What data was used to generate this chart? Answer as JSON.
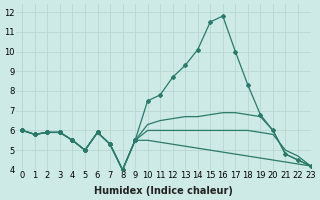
{
  "x": [
    0,
    1,
    2,
    3,
    4,
    5,
    6,
    7,
    8,
    9,
    10,
    11,
    12,
    13,
    14,
    15,
    16,
    17,
    18,
    19,
    20,
    21,
    22,
    23
  ],
  "line1": [
    6.0,
    5.8,
    5.9,
    5.9,
    5.5,
    5.0,
    5.9,
    5.3,
    4.0,
    5.5,
    7.5,
    7.8,
    8.7,
    9.3,
    10.1,
    11.5,
    11.8,
    10.0,
    8.3,
    6.8,
    6.0,
    4.8,
    4.5,
    4.2
  ],
  "line2": [
    6.0,
    5.8,
    5.9,
    5.9,
    5.5,
    5.0,
    5.9,
    5.3,
    4.0,
    5.5,
    5.5,
    5.4,
    5.3,
    5.2,
    5.1,
    5.0,
    4.9,
    4.8,
    4.7,
    4.6,
    4.5,
    4.4,
    4.3,
    4.2
  ],
  "line3": [
    6.0,
    5.8,
    5.9,
    5.9,
    5.5,
    5.0,
    5.9,
    5.3,
    4.0,
    5.5,
    6.0,
    6.0,
    6.0,
    6.0,
    6.0,
    6.0,
    6.0,
    6.0,
    6.0,
    5.9,
    5.8,
    5.0,
    4.7,
    4.2
  ],
  "line4": [
    6.0,
    5.8,
    5.9,
    5.9,
    5.5,
    5.0,
    5.9,
    5.3,
    4.0,
    5.5,
    6.3,
    6.5,
    6.6,
    6.7,
    6.7,
    6.8,
    6.9,
    6.9,
    6.8,
    6.7,
    6.0,
    4.8,
    4.5,
    4.2
  ],
  "color": "#2a7a6a",
  "bg_color": "#ceeae6",
  "grid_color": "#b8d8d4",
  "xlabel": "Humidex (Indice chaleur)",
  "xlim": [
    -0.5,
    23
  ],
  "ylim": [
    4,
    12.4
  ],
  "yticks": [
    4,
    5,
    6,
    7,
    8,
    9,
    10,
    11,
    12
  ],
  "xticks": [
    0,
    1,
    2,
    3,
    4,
    5,
    6,
    7,
    8,
    9,
    10,
    11,
    12,
    13,
    14,
    15,
    16,
    17,
    18,
    19,
    20,
    21,
    22,
    23
  ],
  "xlabel_fontsize": 7.0,
  "tick_fontsize": 6.0,
  "linewidth": 0.9,
  "marker": "D",
  "markersize": 2.0
}
